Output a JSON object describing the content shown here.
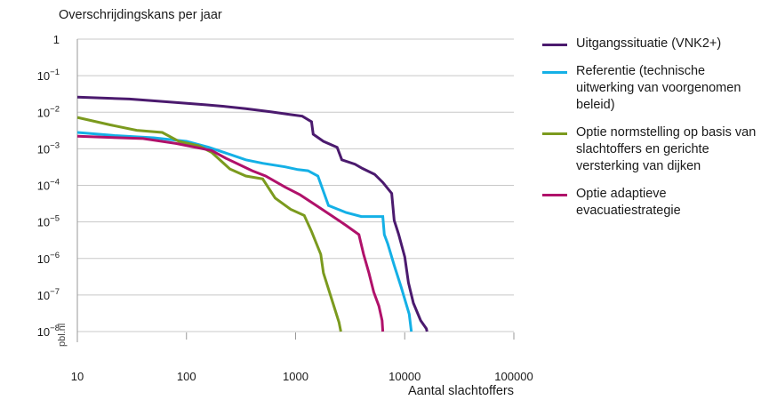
{
  "chart_data": {
    "type": "line",
    "ylabel": "Overschrijdingskans per jaar",
    "xlabel": "Aantal slachtoffers",
    "xscale": "log",
    "yscale": "log",
    "xlim": [
      10,
      100000
    ],
    "ylim": [
      1e-08,
      1
    ],
    "grid": "horizontal",
    "legend": "right",
    "watermark": "pbl.nl",
    "x_ticks": [
      {
        "v": 10,
        "label": "10"
      },
      {
        "v": 100,
        "label": "100"
      },
      {
        "v": 1000,
        "label": "1000"
      },
      {
        "v": 10000,
        "label": "10000"
      },
      {
        "v": 100000,
        "label": "100000"
      }
    ],
    "y_ticks": [
      {
        "v": 1,
        "base": "1",
        "exp": ""
      },
      {
        "v": 0.1,
        "base": "10",
        "exp": "−1"
      },
      {
        "v": 0.01,
        "base": "10",
        "exp": "−2"
      },
      {
        "v": 0.001,
        "base": "10",
        "exp": "−3"
      },
      {
        "v": 0.0001,
        "base": "10",
        "exp": "−4"
      },
      {
        "v": 1e-05,
        "base": "10",
        "exp": "−5"
      },
      {
        "v": 1e-06,
        "base": "10",
        "exp": "−6"
      },
      {
        "v": 1e-07,
        "base": "10",
        "exp": "−7"
      },
      {
        "v": 1e-08,
        "base": "10",
        "exp": "−8"
      }
    ],
    "series": [
      {
        "name": "Uitgangssituatie (VNK2+)",
        "color": "#4b1a6e",
        "points": [
          [
            10,
            0.026
          ],
          [
            30,
            0.023
          ],
          [
            70,
            0.019
          ],
          [
            150,
            0.016
          ],
          [
            220,
            0.0145
          ],
          [
            350,
            0.0125
          ],
          [
            600,
            0.0102
          ],
          [
            850,
            0.0088
          ],
          [
            1150,
            0.0078
          ],
          [
            1400,
            0.0055
          ],
          [
            1450,
            0.0025
          ],
          [
            1800,
            0.0016
          ],
          [
            2400,
            0.0011
          ],
          [
            2650,
            0.0005
          ],
          [
            3500,
            0.00038
          ],
          [
            4100,
            0.00029
          ],
          [
            5300,
            0.0002
          ],
          [
            6300,
            0.00012
          ],
          [
            7600,
            6e-05
          ],
          [
            8000,
            1.1e-05
          ],
          [
            8800,
            4.6e-06
          ],
          [
            10000,
            1.1e-06
          ],
          [
            10800,
            2.2e-07
          ],
          [
            12000,
            6e-08
          ],
          [
            14000,
            2e-08
          ],
          [
            15800,
            1.2e-08
          ],
          [
            16000,
            1e-08
          ]
        ]
      },
      {
        "name": "Referentie (technische uitwerking van voorgenomen beleid)",
        "color": "#14b0e6",
        "points": [
          [
            10,
            0.0028
          ],
          [
            22,
            0.0023
          ],
          [
            50,
            0.002
          ],
          [
            100,
            0.0016
          ],
          [
            160,
            0.0011
          ],
          [
            250,
            0.0007
          ],
          [
            350,
            0.0005
          ],
          [
            500,
            0.0004
          ],
          [
            800,
            0.00032
          ],
          [
            1050,
            0.00027
          ],
          [
            1300,
            0.00025
          ],
          [
            1600,
            0.00018
          ],
          [
            2000,
            2.8e-05
          ],
          [
            2900,
            1.8e-05
          ],
          [
            4000,
            1.4e-05
          ],
          [
            6300,
            1.4e-05
          ],
          [
            6500,
            4.5e-06
          ],
          [
            7000,
            2.5e-06
          ],
          [
            8000,
            6.5e-07
          ],
          [
            9300,
            1.6e-07
          ],
          [
            11000,
            3e-08
          ],
          [
            11500,
            1e-08
          ]
        ]
      },
      {
        "name": "Optie normstelling op basis van slachtoffers en gerichte versterking van dijken",
        "color": "#7b9a1e",
        "points": [
          [
            10,
            0.0072
          ],
          [
            20,
            0.0045
          ],
          [
            35,
            0.0032
          ],
          [
            60,
            0.0028
          ],
          [
            85,
            0.0016
          ],
          [
            130,
            0.0012
          ],
          [
            170,
            0.0008
          ],
          [
            250,
            0.00028
          ],
          [
            350,
            0.00018
          ],
          [
            500,
            0.00015
          ],
          [
            650,
            4.5e-05
          ],
          [
            900,
            2.2e-05
          ],
          [
            1200,
            1.5e-05
          ],
          [
            1400,
            5.5e-06
          ],
          [
            1700,
            1.3e-06
          ],
          [
            1800,
            4e-07
          ],
          [
            2200,
            6e-08
          ],
          [
            2500,
            1.8e-08
          ],
          [
            2600,
            1e-08
          ]
        ]
      },
      {
        "name": "Optie adaptieve evacuatiestrategie",
        "color": "#b0116a",
        "points": [
          [
            10,
            0.0022
          ],
          [
            40,
            0.0019
          ],
          [
            80,
            0.0014
          ],
          [
            170,
            0.0009
          ],
          [
            230,
            0.00055
          ],
          [
            400,
            0.00025
          ],
          [
            530,
            0.00018
          ],
          [
            800,
            9e-05
          ],
          [
            1100,
            5.5e-05
          ],
          [
            1550,
            2.8e-05
          ],
          [
            2200,
            1.4e-05
          ],
          [
            2900,
            8e-06
          ],
          [
            3800,
            4.5e-06
          ],
          [
            4200,
            1.3e-06
          ],
          [
            4700,
            4e-07
          ],
          [
            5200,
            1.2e-07
          ],
          [
            5800,
            5e-08
          ],
          [
            6200,
            2e-08
          ],
          [
            6300,
            1e-08
          ]
        ]
      }
    ]
  }
}
